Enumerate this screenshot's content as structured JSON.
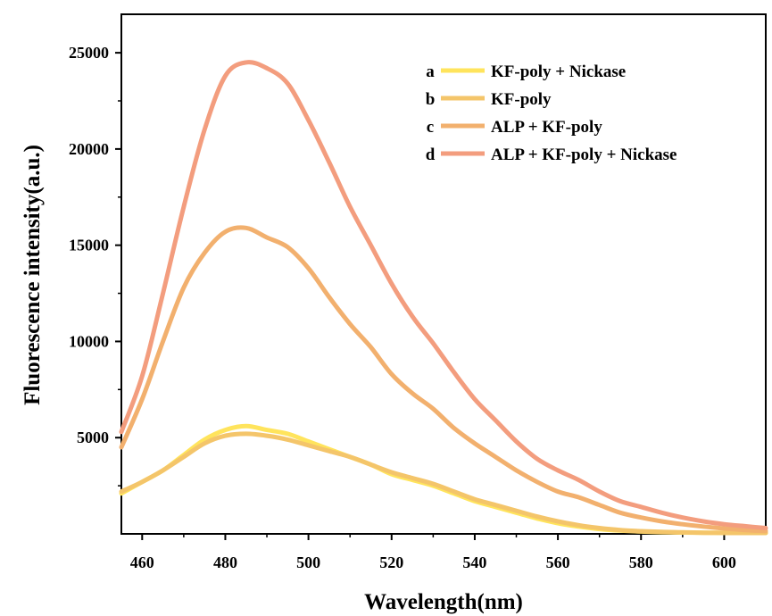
{
  "chart_data": {
    "type": "line",
    "xlabel": "Wavelength(nm)",
    "ylabel": "Fluorescence intensity(a.u.)",
    "xlim": [
      455,
      610
    ],
    "ylim": [
      0,
      27000
    ],
    "xticks": [
      460,
      480,
      500,
      520,
      540,
      560,
      580,
      600
    ],
    "yticks": [
      5000,
      10000,
      15000,
      20000,
      25000
    ],
    "legend_position": "top-right",
    "series": [
      {
        "key": "a",
        "name": "KF-poly + Nickase",
        "color": "#FFE45C",
        "x": [
          455,
          460,
          465,
          470,
          475,
          480,
          485,
          490,
          495,
          500,
          505,
          510,
          515,
          520,
          525,
          530,
          535,
          540,
          545,
          550,
          555,
          560,
          565,
          570,
          575,
          580,
          585,
          590,
          595,
          600,
          605,
          610
        ],
        "y": [
          2100,
          2700,
          3300,
          4100,
          4900,
          5400,
          5600,
          5400,
          5200,
          4800,
          4400,
          4000,
          3600,
          3100,
          2800,
          2500,
          2100,
          1700,
          1400,
          1100,
          800,
          550,
          380,
          250,
          170,
          120,
          90,
          70,
          60,
          50,
          40,
          30
        ]
      },
      {
        "key": "b",
        "name": "KF-poly",
        "color": "#F4C56A",
        "x": [
          455,
          460,
          465,
          470,
          475,
          480,
          485,
          490,
          495,
          500,
          505,
          510,
          515,
          520,
          525,
          530,
          535,
          540,
          545,
          550,
          555,
          560,
          565,
          570,
          575,
          580,
          585,
          590,
          595,
          600,
          605,
          610
        ],
        "y": [
          2200,
          2700,
          3300,
          4000,
          4700,
          5100,
          5200,
          5100,
          4900,
          4600,
          4300,
          4000,
          3600,
          3200,
          2900,
          2600,
          2200,
          1800,
          1500,
          1200,
          900,
          650,
          450,
          300,
          200,
          140,
          100,
          80,
          60,
          50,
          40,
          30
        ]
      },
      {
        "key": "c",
        "name": "ALP + KF-poly",
        "color": "#F2B06E",
        "x": [
          455,
          460,
          465,
          470,
          475,
          480,
          485,
          490,
          495,
          500,
          505,
          510,
          515,
          520,
          525,
          530,
          535,
          540,
          545,
          550,
          555,
          560,
          565,
          570,
          575,
          580,
          585,
          590,
          595,
          600,
          605,
          610
        ],
        "y": [
          4500,
          7000,
          10000,
          12800,
          14600,
          15700,
          15900,
          15400,
          14900,
          13800,
          12300,
          10900,
          9700,
          8300,
          7300,
          6500,
          5500,
          4700,
          4000,
          3300,
          2700,
          2200,
          1900,
          1500,
          1100,
          850,
          650,
          500,
          380,
          280,
          200,
          150
        ]
      },
      {
        "key": "d",
        "name": "ALP + KF-poly + Nickase",
        "color": "#F39D7E",
        "x": [
          455,
          460,
          465,
          470,
          475,
          480,
          485,
          490,
          495,
          500,
          505,
          510,
          515,
          520,
          525,
          530,
          535,
          540,
          545,
          550,
          555,
          560,
          565,
          570,
          575,
          580,
          585,
          590,
          595,
          600,
          605,
          610
        ],
        "y": [
          5300,
          8200,
          12500,
          17000,
          21000,
          23800,
          24500,
          24200,
          23400,
          21500,
          19300,
          17000,
          15000,
          13000,
          11300,
          9900,
          8400,
          7000,
          5900,
          4800,
          3900,
          3300,
          2800,
          2200,
          1700,
          1400,
          1100,
          850,
          650,
          500,
          400,
          300
        ]
      }
    ]
  }
}
